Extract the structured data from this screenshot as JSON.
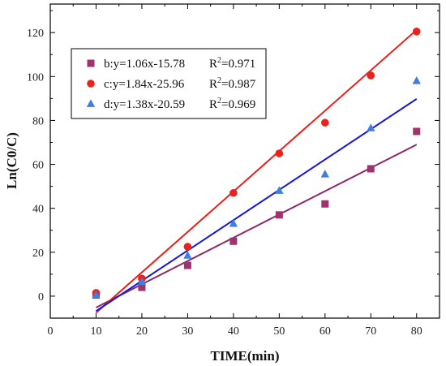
{
  "chart_data": {
    "type": "scatter",
    "xlabel": "TIME(min)",
    "ylabel": "Ln(C0/C)",
    "xlim": [
      0,
      85
    ],
    "ylim": [
      -10,
      133
    ],
    "xticks": [
      "0",
      "10",
      "20",
      "30",
      "40",
      "50",
      "60",
      "70",
      "80"
    ],
    "yticks": [
      "0",
      "20",
      "40",
      "60",
      "80",
      "100",
      "120"
    ],
    "legend_position": "top-left",
    "x": [
      10,
      20,
      30,
      40,
      50,
      60,
      70,
      80
    ],
    "series": [
      {
        "name": "b",
        "marker": "square",
        "color": "#a0336f",
        "line_color": "#8b2a6b",
        "values": [
          0.5,
          4,
          14,
          25,
          37,
          42,
          58,
          75
        ],
        "fit": {
          "slope": 1.06,
          "intercept": -15.78
        },
        "equation_text": "b:y=1.06x-15.78",
        "r2_text": "0.971"
      },
      {
        "name": "c",
        "marker": "circle",
        "color": "#e8231d",
        "line_color": "#e8231d",
        "values": [
          1.5,
          8,
          22.5,
          47,
          65,
          79,
          100.5,
          120.5
        ],
        "fit": {
          "slope": 1.84,
          "intercept": -25.96
        },
        "equation_text": "c:y=1.84x-25.96",
        "r2_text": "0.987"
      },
      {
        "name": "d",
        "marker": "triangle",
        "color": "#3d7fe0",
        "line_color": "#1515d6",
        "values": [
          0.5,
          6.5,
          18.5,
          33,
          48,
          55.5,
          76.5,
          98
        ],
        "fit": {
          "slope": 1.38,
          "intercept": -20.59
        },
        "equation_text": "d:y=1.38x-20.59",
        "r2_text": "0.969"
      }
    ],
    "fit_range": [
      10,
      80
    ],
    "r2_label": "R"
  }
}
